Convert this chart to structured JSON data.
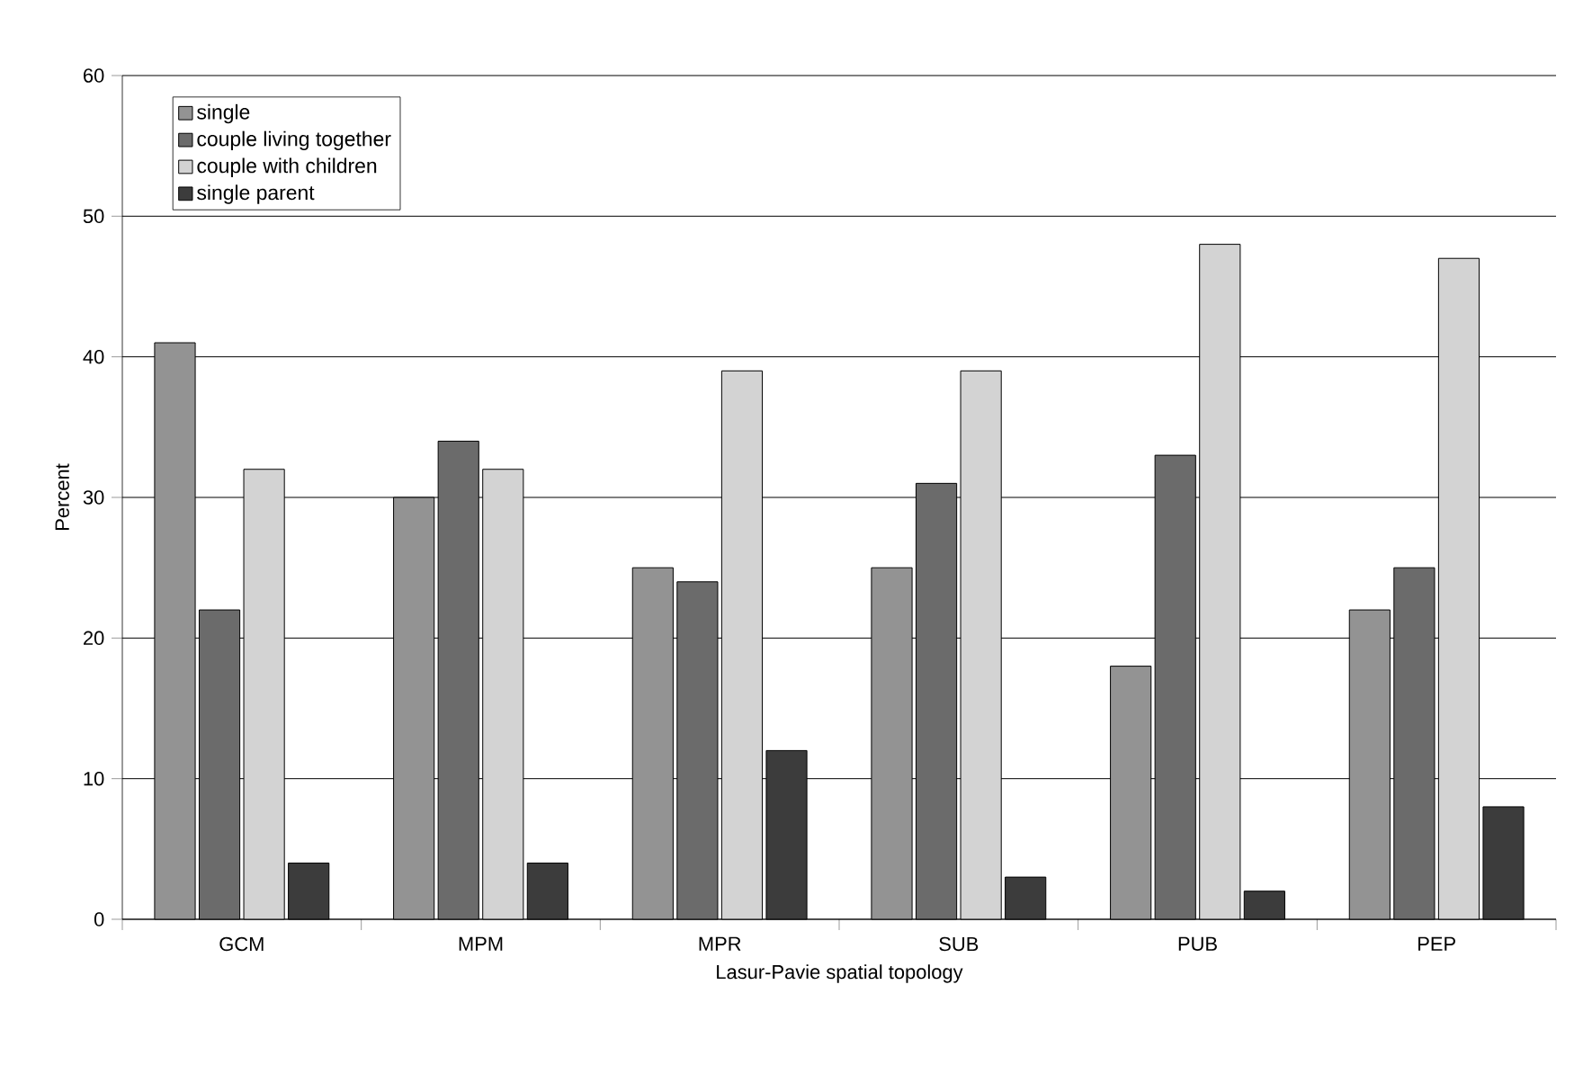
{
  "chart_data": {
    "type": "bar",
    "xlabel": "Lasur-Pavie spatial topology",
    "ylabel": "Percent",
    "categories": [
      "GCM",
      "MPM",
      "MPR",
      "SUB",
      "PUB",
      "PEP"
    ],
    "series": [
      {
        "name": "single",
        "color": "#939393",
        "values": [
          41,
          30,
          25,
          25,
          18,
          22
        ]
      },
      {
        "name": "couple living together",
        "color": "#6b6b6b",
        "values": [
          22,
          34,
          24,
          31,
          33,
          25
        ]
      },
      {
        "name": "couple with children",
        "color": "#d3d3d3",
        "values": [
          32,
          32,
          39,
          39,
          48,
          47
        ]
      },
      {
        "name": "single parent",
        "color": "#3c3c3c",
        "values": [
          4,
          4,
          12,
          3,
          2,
          8
        ]
      }
    ],
    "ylim": [
      0,
      60
    ],
    "yticks": [
      0,
      10,
      20,
      30,
      40,
      50,
      60
    ],
    "grid": "y",
    "legend": "top left"
  }
}
